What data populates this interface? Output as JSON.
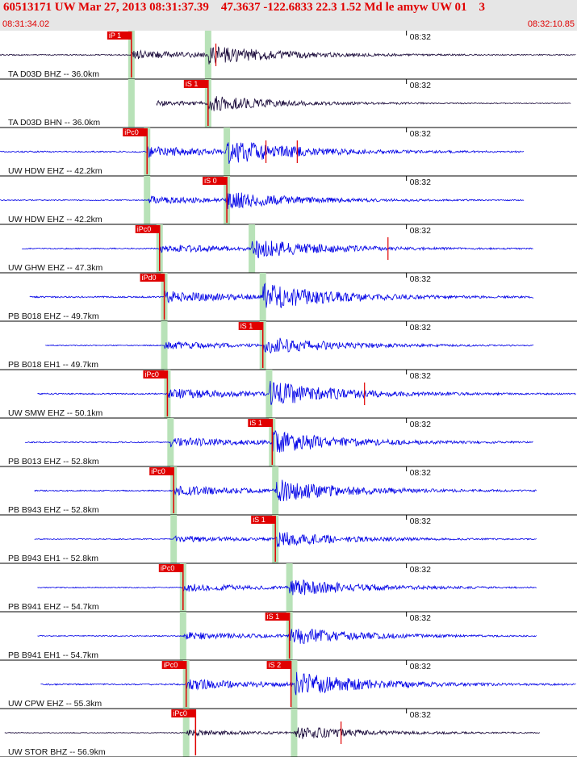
{
  "header": {
    "title": "60513171 UW Mar 27, 2013 08:31:37.39    47.3637 -122.6833 22.3 1.52 Md le amyw UW 01    3",
    "start_time": "08:31:34.02",
    "end_time": "08:32:10.85"
  },
  "chart_data": {
    "type": "line",
    "title": "60513171 UW Mar 27, 2013 08:31:37.39    47.3637 -122.6833 22.3 1.52 Md le amyw UW 01    3",
    "x_range_seconds": [
      0,
      36.83
    ],
    "minute_tick": {
      "label": "08:32",
      "seconds": 25.98
    },
    "colors": {
      "accent": "#e00000",
      "trace_blue": "#0000e6",
      "trace_dark": "#1a0a3a",
      "window": "#b8e2b8",
      "frame": "#000000"
    },
    "traces": [
      {
        "label": "TA D03D BHZ -- 36.0km",
        "color": "dark",
        "start": 0.0,
        "end": 36.83,
        "p": 8.4,
        "s": 13.3,
        "amp": 0.45,
        "pick": "iP 1",
        "pick_at": 8.4,
        "ticks": [
          13.8
        ]
      },
      {
        "label": "TA D03D BHN -- 36.0km",
        "color": "dark",
        "start": 10.0,
        "end": 36.5,
        "p": 8.4,
        "s": 13.3,
        "amp": 0.35,
        "pick": "iS 1",
        "pick_at": 13.3,
        "ticks": []
      },
      {
        "label": "UW HDW EHZ -- 42.2km",
        "color": "blue",
        "start": 0.0,
        "end": 33.5,
        "p": 9.4,
        "s": 14.5,
        "amp": 0.55,
        "pick": "iPc0",
        "pick_at": 9.4,
        "ticks": [
          17.0,
          19.0
        ]
      },
      {
        "label": "UW HDW EHZ -- 42.2km",
        "color": "blue",
        "start": 0.0,
        "end": 33.5,
        "p": 9.4,
        "s": 14.5,
        "amp": 0.4,
        "pick": "iS 0",
        "pick_at": 14.5,
        "ticks": []
      },
      {
        "label": "UW GHW EHZ -- 47.3km",
        "color": "blue",
        "start": 1.4,
        "end": 34.1,
        "p": 10.2,
        "s": 16.1,
        "amp": 0.45,
        "pick": "iPc0",
        "pick_at": 10.2,
        "ticks": [
          24.8
        ]
      },
      {
        "label": "PB B018 EHZ -- 49.7km",
        "color": "blue",
        "start": 1.9,
        "end": 34.1,
        "p": 10.5,
        "s": 16.8,
        "amp": 0.6,
        "pick": "iPd0",
        "pick_at": 10.5,
        "ticks": []
      },
      {
        "label": "PB B018 EH1 -- 49.7km",
        "color": "blue",
        "start": 2.9,
        "end": 34.1,
        "p": 10.5,
        "s": 16.8,
        "amp": 0.4,
        "pick": "iS 1",
        "pick_at": 16.8,
        "ticks": []
      },
      {
        "label": "UW SMW EHZ -- 50.1km",
        "color": "blue",
        "start": 2.4,
        "end": 36.83,
        "p": 10.7,
        "s": 17.2,
        "amp": 0.55,
        "pick": "iPc0",
        "pick_at": 10.7,
        "ticks": [
          23.3
        ]
      },
      {
        "label": "PB B013 EHZ -- 52.8km",
        "color": "blue",
        "start": 1.6,
        "end": 34.1,
        "p": 10.9,
        "s": 17.4,
        "amp": 0.5,
        "pick": "iS 1",
        "pick_at": 17.4,
        "ticks": []
      },
      {
        "label": "PB B943 EHZ -- 52.8km",
        "color": "blue",
        "start": 2.2,
        "end": 34.3,
        "p": 11.1,
        "s": 17.6,
        "amp": 0.5,
        "pick": "iPc0",
        "pick_at": 11.1,
        "ticks": []
      },
      {
        "label": "PB B943 EH1 -- 52.8km",
        "color": "blue",
        "start": 2.2,
        "end": 34.3,
        "p": 11.1,
        "s": 17.6,
        "amp": 0.35,
        "pick": "iS 1",
        "pick_at": 17.6,
        "ticks": []
      },
      {
        "label": "PB B941 EHZ -- 54.7km",
        "color": "blue",
        "start": 2.4,
        "end": 34.3,
        "p": 11.7,
        "s": 18.5,
        "amp": 0.4,
        "pick": "iPc0",
        "pick_at": 11.7,
        "ticks": []
      },
      {
        "label": "PB B941 EH1 -- 54.7km",
        "color": "blue",
        "start": 2.4,
        "end": 34.3,
        "p": 11.7,
        "s": 18.5,
        "amp": 0.4,
        "pick": "iS 1",
        "pick_at": 18.5,
        "ticks": []
      },
      {
        "label": "UW CPW EHZ -- 55.3km",
        "color": "blue",
        "start": 2.6,
        "end": 36.83,
        "p": 11.9,
        "s": 18.8,
        "amp": 0.55,
        "pick": "iPc0",
        "pick_at": 11.9,
        "pick2": "iS 2",
        "pick2_at": 18.6,
        "ticks": []
      },
      {
        "label": "UW STOR BHZ -- 56.9km",
        "color": "dark",
        "start": 0.3,
        "end": 34.5,
        "p": 11.9,
        "s": 18.8,
        "amp": 0.3,
        "pick": "iPc0",
        "pick_at": 12.5,
        "ticks": [
          21.8
        ]
      }
    ]
  }
}
